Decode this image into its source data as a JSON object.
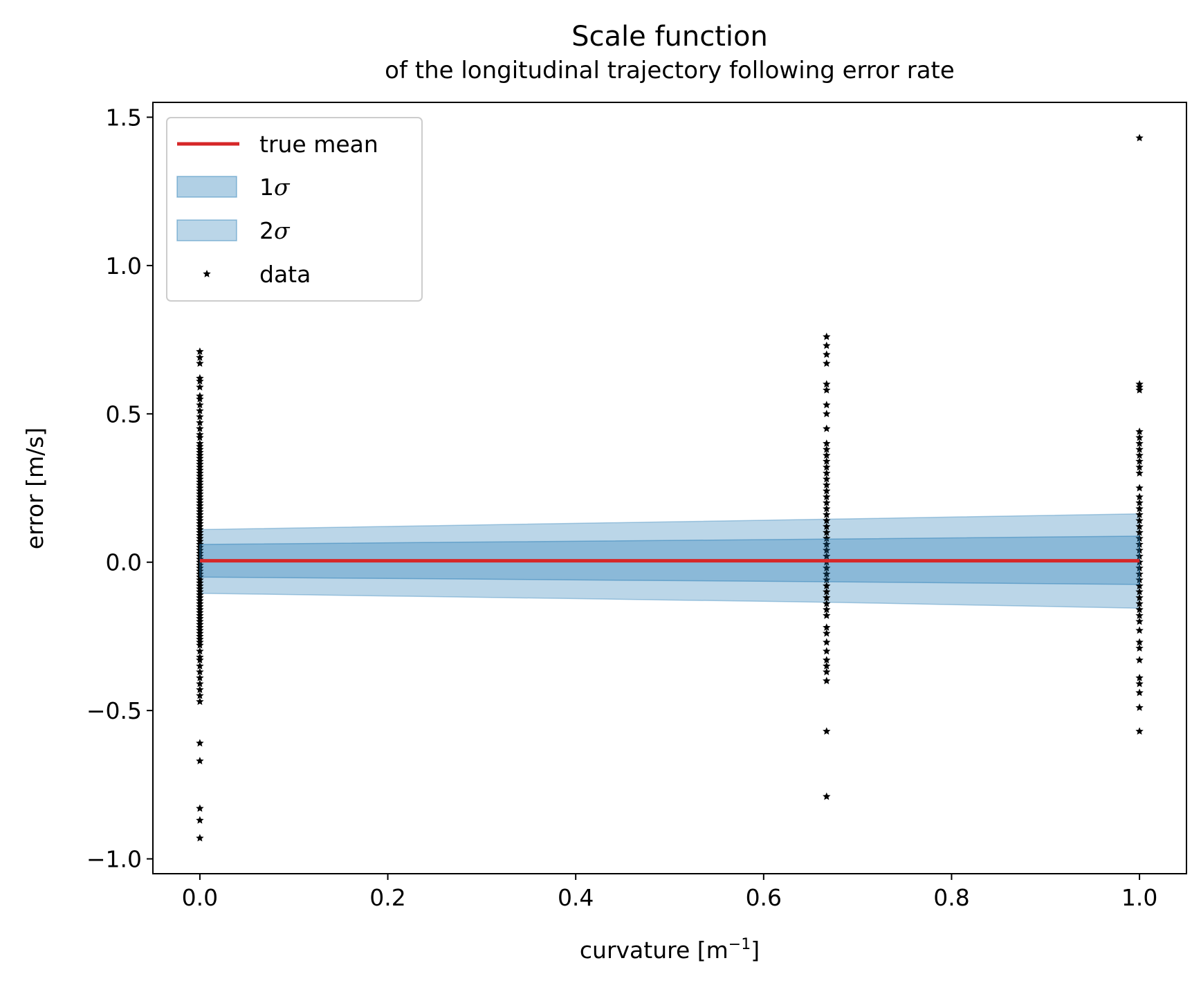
{
  "chart_data": {
    "type": "scatter",
    "title": "Scale function",
    "subtitle": "of the longitudinal trajectory following error rate",
    "xlabel": "curvature [m",
    "xlabel_sup": "−1",
    "xlabel_end": "]",
    "ylabel": "error [m/s]",
    "xlim": [
      -0.05,
      1.05
    ],
    "ylim": [
      -1.05,
      1.55
    ],
    "xticks": [
      0.0,
      0.2,
      0.4,
      0.6,
      0.8,
      1.0
    ],
    "xtick_labels": [
      "0.0",
      "0.2",
      "0.4",
      "0.6",
      "0.8",
      "1.0"
    ],
    "yticks": [
      -1.0,
      -0.5,
      0.0,
      0.5,
      1.0,
      1.5
    ],
    "ytick_labels": [
      "−1.0",
      "−0.5",
      "0.0",
      "0.5",
      "1.0",
      "1.5"
    ],
    "grid": false,
    "legend_position": "top-left",
    "legend": [
      {
        "label": "true mean",
        "kind": "line",
        "color": "#d62728"
      },
      {
        "label": "1",
        "sigma": "σ",
        "kind": "band",
        "color": "#1f77b4"
      },
      {
        "label": "2",
        "sigma": "σ",
        "kind": "band",
        "color": "#1f77b4"
      },
      {
        "label": "data",
        "kind": "marker",
        "color": "#000000"
      }
    ],
    "true_mean": {
      "x": [
        0.0,
        1.0
      ],
      "y": [
        0.005,
        0.005
      ],
      "color": "#d62728"
    },
    "band_1sigma": {
      "x": [
        0.0,
        0.667,
        1.0
      ],
      "upper": [
        0.06,
        0.078,
        0.088
      ],
      "lower": [
        -0.05,
        -0.066,
        -0.075
      ],
      "color": "#1f77b4"
    },
    "band_2sigma": {
      "x": [
        0.0,
        0.667,
        1.0
      ],
      "upper": [
        0.11,
        0.145,
        0.163
      ],
      "lower": [
        -0.105,
        -0.135,
        -0.155
      ],
      "color": "#1f77b4"
    },
    "data_series": [
      {
        "x": 0.0,
        "y": [
          0.71,
          0.69,
          0.67,
          0.62,
          0.61,
          0.59,
          0.56,
          0.55,
          0.53,
          0.51,
          0.49,
          0.47,
          0.45,
          0.43,
          0.42,
          0.4,
          0.39,
          0.38,
          0.37,
          0.36,
          0.35,
          0.34,
          0.33,
          0.32,
          0.31,
          0.3,
          0.29,
          0.28,
          0.27,
          0.26,
          0.25,
          0.24,
          0.23,
          0.22,
          0.21,
          0.2,
          0.19,
          0.18,
          0.17,
          0.16,
          0.15,
          0.14,
          0.13,
          0.12,
          0.11,
          0.1,
          0.09,
          0.08,
          0.07,
          0.06,
          0.05,
          0.04,
          0.03,
          0.02,
          0.01,
          0.0,
          -0.01,
          -0.02,
          -0.03,
          -0.04,
          -0.05,
          -0.06,
          -0.07,
          -0.08,
          -0.09,
          -0.1,
          -0.11,
          -0.12,
          -0.13,
          -0.14,
          -0.15,
          -0.16,
          -0.17,
          -0.18,
          -0.19,
          -0.2,
          -0.21,
          -0.22,
          -0.23,
          -0.24,
          -0.25,
          -0.26,
          -0.27,
          -0.28,
          -0.3,
          -0.32,
          -0.33,
          -0.35,
          -0.37,
          -0.39,
          -0.41,
          -0.43,
          -0.45,
          -0.47,
          -0.61,
          -0.67,
          -0.83,
          -0.87,
          -0.93
        ]
      },
      {
        "x": 0.667,
        "y": [
          0.76,
          0.73,
          0.7,
          0.67,
          0.6,
          0.58,
          0.53,
          0.5,
          0.45,
          0.4,
          0.38,
          0.36,
          0.34,
          0.32,
          0.3,
          0.28,
          0.26,
          0.24,
          0.22,
          0.2,
          0.18,
          0.16,
          0.14,
          0.12,
          0.1,
          0.08,
          0.06,
          0.04,
          0.02,
          0.0,
          -0.02,
          -0.04,
          -0.06,
          -0.08,
          -0.1,
          -0.12,
          -0.14,
          -0.16,
          -0.18,
          -0.22,
          -0.24,
          -0.27,
          -0.3,
          -0.33,
          -0.35,
          -0.37,
          -0.4,
          -0.57,
          -0.79
        ]
      },
      {
        "x": 1.0,
        "y": [
          1.43,
          0.6,
          0.59,
          0.58,
          0.44,
          0.42,
          0.4,
          0.38,
          0.36,
          0.34,
          0.32,
          0.3,
          0.25,
          0.22,
          0.2,
          0.18,
          0.16,
          0.14,
          0.12,
          0.1,
          0.08,
          0.06,
          0.04,
          0.02,
          0.0,
          -0.02,
          -0.04,
          -0.06,
          -0.08,
          -0.1,
          -0.12,
          -0.14,
          -0.16,
          -0.18,
          -0.2,
          -0.23,
          -0.27,
          -0.29,
          -0.33,
          -0.39,
          -0.41,
          -0.44,
          -0.49,
          -0.57
        ]
      }
    ]
  }
}
